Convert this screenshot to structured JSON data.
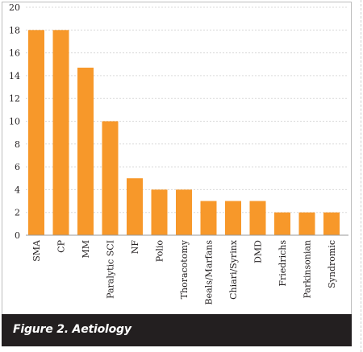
{
  "caption": "Figure 2. Aetiology",
  "colors": {
    "bar": "#f7982a",
    "caption_bg": "#231f20",
    "caption_text": "#ffffff"
  },
  "chart_data": {
    "type": "bar",
    "title": "",
    "xlabel": "",
    "ylabel": "",
    "ylim": [
      0,
      20
    ],
    "yticks": [
      0,
      2,
      4,
      6,
      8,
      10,
      12,
      14,
      16,
      18,
      20
    ],
    "grid": true,
    "categories": [
      "SMA",
      "CP",
      "MM",
      "Paralytic SCI",
      "NF",
      "Polio",
      "Thoracotomy",
      "Beals/Marfans",
      "Chiari/Syrinx",
      "DMD",
      "Friedrichs",
      "Parkinsonian",
      "Syndromic"
    ],
    "values": [
      18,
      18,
      14.7,
      10,
      5,
      4,
      4,
      3,
      3,
      3,
      2,
      2,
      2
    ]
  }
}
